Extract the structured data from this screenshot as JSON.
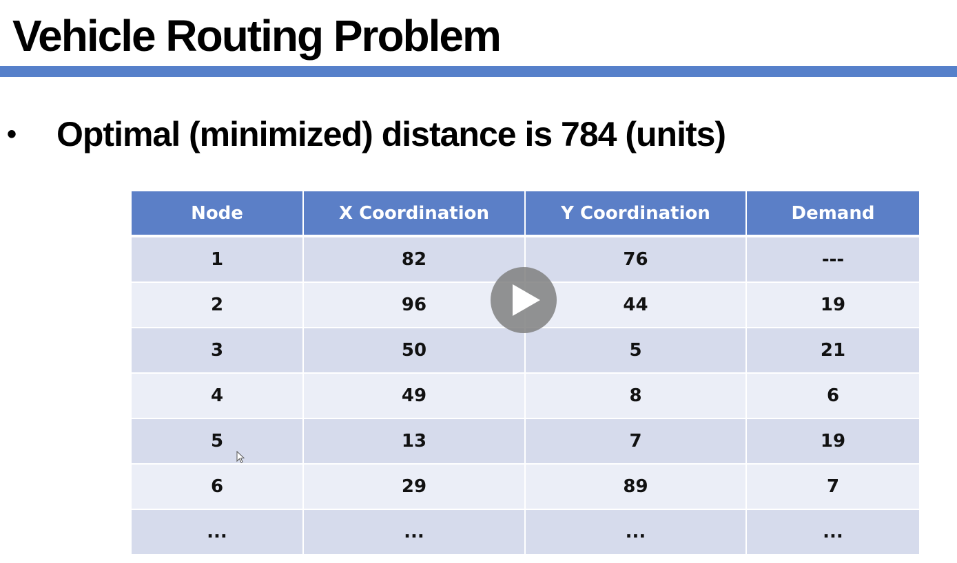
{
  "slide": {
    "title": "Vehicle Routing Problem",
    "bullet": "Optimal (minimized) distance is 784 (units)",
    "accent_color": "#4472c4"
  },
  "table": {
    "headers": [
      "Node",
      "X Coordination",
      "Y Coordination",
      "Demand"
    ],
    "rows": [
      [
        "1",
        "82",
        "76",
        "---"
      ],
      [
        "2",
        "96",
        "44",
        "19"
      ],
      [
        "3",
        "50",
        "5",
        "21"
      ],
      [
        "4",
        "49",
        "8",
        "6"
      ],
      [
        "5",
        "13",
        "7",
        "19"
      ],
      [
        "6",
        "29",
        "89",
        "7"
      ],
      [
        "...",
        "...",
        "...",
        "..."
      ]
    ],
    "header_color": "#5b7fc7",
    "row_colors": [
      "#d6dbec",
      "#ebeef7"
    ]
  },
  "video_overlay": {
    "play_icon": "play-icon",
    "cursor_icon": "mouse-cursor-icon"
  }
}
